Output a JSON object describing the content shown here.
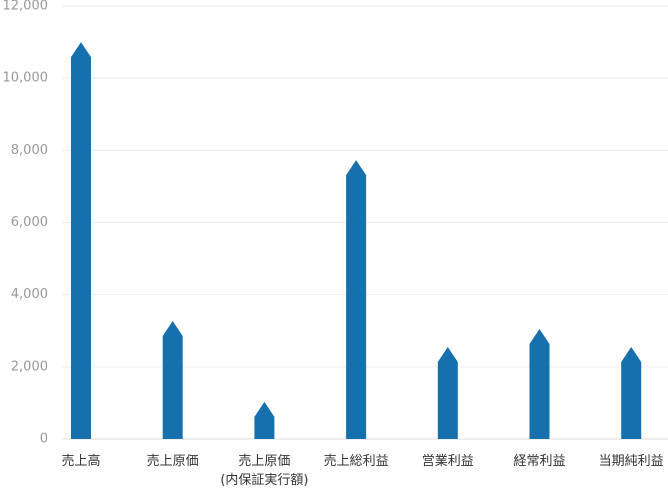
{
  "chart_data": {
    "type": "bar",
    "categories": [
      "売上高",
      "売上原価",
      "売上原価\n(内保証実行額)",
      "売上総利益",
      "営業利益",
      "経常利益",
      "当期純利益"
    ],
    "values": [
      11000,
      3270,
      1030,
      7730,
      2550,
      3050,
      2550
    ],
    "color": "#1670ad",
    "ylim": [
      0,
      12000
    ],
    "yticks": [
      0,
      {
        "value": 2000,
        "label": "2,000"
      },
      {
        "value": 4000,
        "label": "4,000"
      },
      {
        "value": 6000,
        "label": "6,000"
      },
      {
        "value": 8000,
        "label": "8,000"
      },
      {
        "value": 10000,
        "label": "10,000"
      },
      {
        "value": 12000,
        "label": "12,000"
      }
    ],
    "grid": true
  }
}
